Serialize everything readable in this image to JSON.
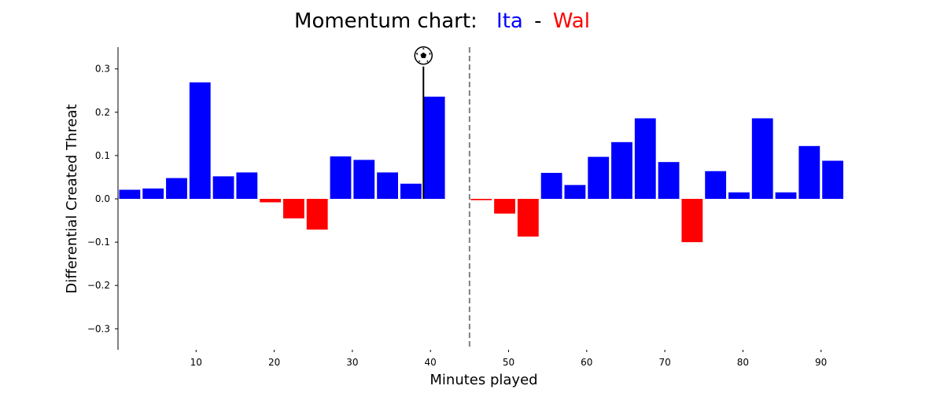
{
  "chart_data": {
    "type": "bar",
    "title": {
      "prefix": "Momentum chart:",
      "home": "Ita",
      "separator": "-",
      "away": "Wal"
    },
    "xlabel": "Minutes played",
    "ylabel": "Differential Created Threat",
    "ylim": [
      -0.35,
      0.35
    ],
    "yticks": [
      -0.3,
      -0.2,
      -0.1,
      0.0,
      0.1,
      0.2,
      0.3
    ],
    "ytick_labels": [
      "−0.3",
      "−0.2",
      "−0.1",
      "0.0",
      "0.1",
      "0.2",
      "0.3"
    ],
    "xticks": [
      10,
      20,
      30,
      40,
      50,
      60,
      70,
      80,
      90
    ],
    "bar_width_minutes": 2.7,
    "halftime_minute": 45,
    "colors": {
      "positive": "#0000ff",
      "negative": "#ff0000",
      "halftime_line": "#808080",
      "goal_line": "#000000"
    },
    "halves": [
      {
        "x": [
          1.5,
          4.5,
          7.5,
          10.5,
          13.5,
          16.5,
          19.5,
          22.5,
          25.5,
          28.5,
          31.5,
          34.5,
          37.5,
          40.5
        ],
        "values": [
          0.021,
          0.024,
          0.048,
          0.269,
          0.052,
          0.061,
          -0.008,
          -0.045,
          -0.071,
          0.098,
          0.09,
          0.061,
          0.035,
          0.236
        ]
      },
      {
        "x": [
          46.5,
          49.5,
          52.5,
          55.5,
          58.5,
          61.5,
          64.5,
          67.5,
          70.5,
          73.5,
          76.5,
          79.5,
          82.5,
          85.5,
          88.5,
          91.5
        ],
        "values": [
          -0.003,
          -0.034,
          -0.087,
          0.06,
          0.032,
          0.097,
          0.131,
          0.186,
          0.085,
          -0.1,
          0.064,
          0.015,
          0.186,
          0.015,
          0.122,
          0.088
        ]
      }
    ],
    "goals": [
      {
        "minute": 39,
        "team": "Ita",
        "marker_y": 0.32,
        "icon": "soccer-ball-icon"
      }
    ]
  }
}
